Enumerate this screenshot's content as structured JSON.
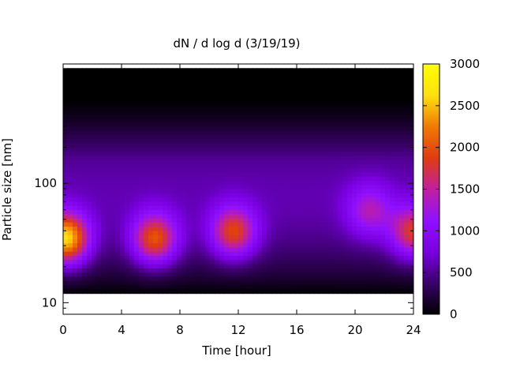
{
  "chart_data": {
    "type": "heatmap",
    "title": "dN / d log d (3/19/19)",
    "xlabel": "Time [hour]",
    "ylabel": "Particle size [nm]",
    "xlim": [
      0,
      24
    ],
    "ylim": [
      8,
      1000
    ],
    "y_scale": "log",
    "x_ticks": [
      0,
      4,
      8,
      12,
      16,
      20,
      24
    ],
    "x_tick_labels": [
      "0",
      "4",
      "8",
      "12",
      "16",
      "20",
      "24"
    ],
    "y_ticks": [
      10,
      100
    ],
    "y_tick_labels": [
      "10",
      "100"
    ],
    "colorbar": {
      "range": [
        0,
        3000
      ],
      "ticks": [
        0,
        500,
        1000,
        1500,
        2000,
        2500,
        3000
      ],
      "tick_labels": [
        "0",
        "500",
        "1000",
        "1500",
        "2000",
        "2500",
        "3000"
      ],
      "palette": [
        "#000000",
        "#3a0069",
        "#7a00e0",
        "#9010ff",
        "#c020a0",
        "#e03c10",
        "#f07a05",
        "#ffe010",
        "#ffff00"
      ]
    },
    "data_size_range_nm": [
      12,
      900
    ],
    "background_level": 600,
    "features": [
      {
        "time_hour": 0.2,
        "size_nm": 35,
        "peak": 2750
      },
      {
        "time_hour": 6.3,
        "size_nm": 35,
        "peak": 2100
      },
      {
        "time_hour": 11.7,
        "size_nm": 40,
        "peak": 2000
      },
      {
        "time_hour": 21.0,
        "size_nm": 60,
        "peak": 1450
      },
      {
        "time_hour": 24.0,
        "size_nm": 40,
        "peak": 1900
      }
    ]
  }
}
